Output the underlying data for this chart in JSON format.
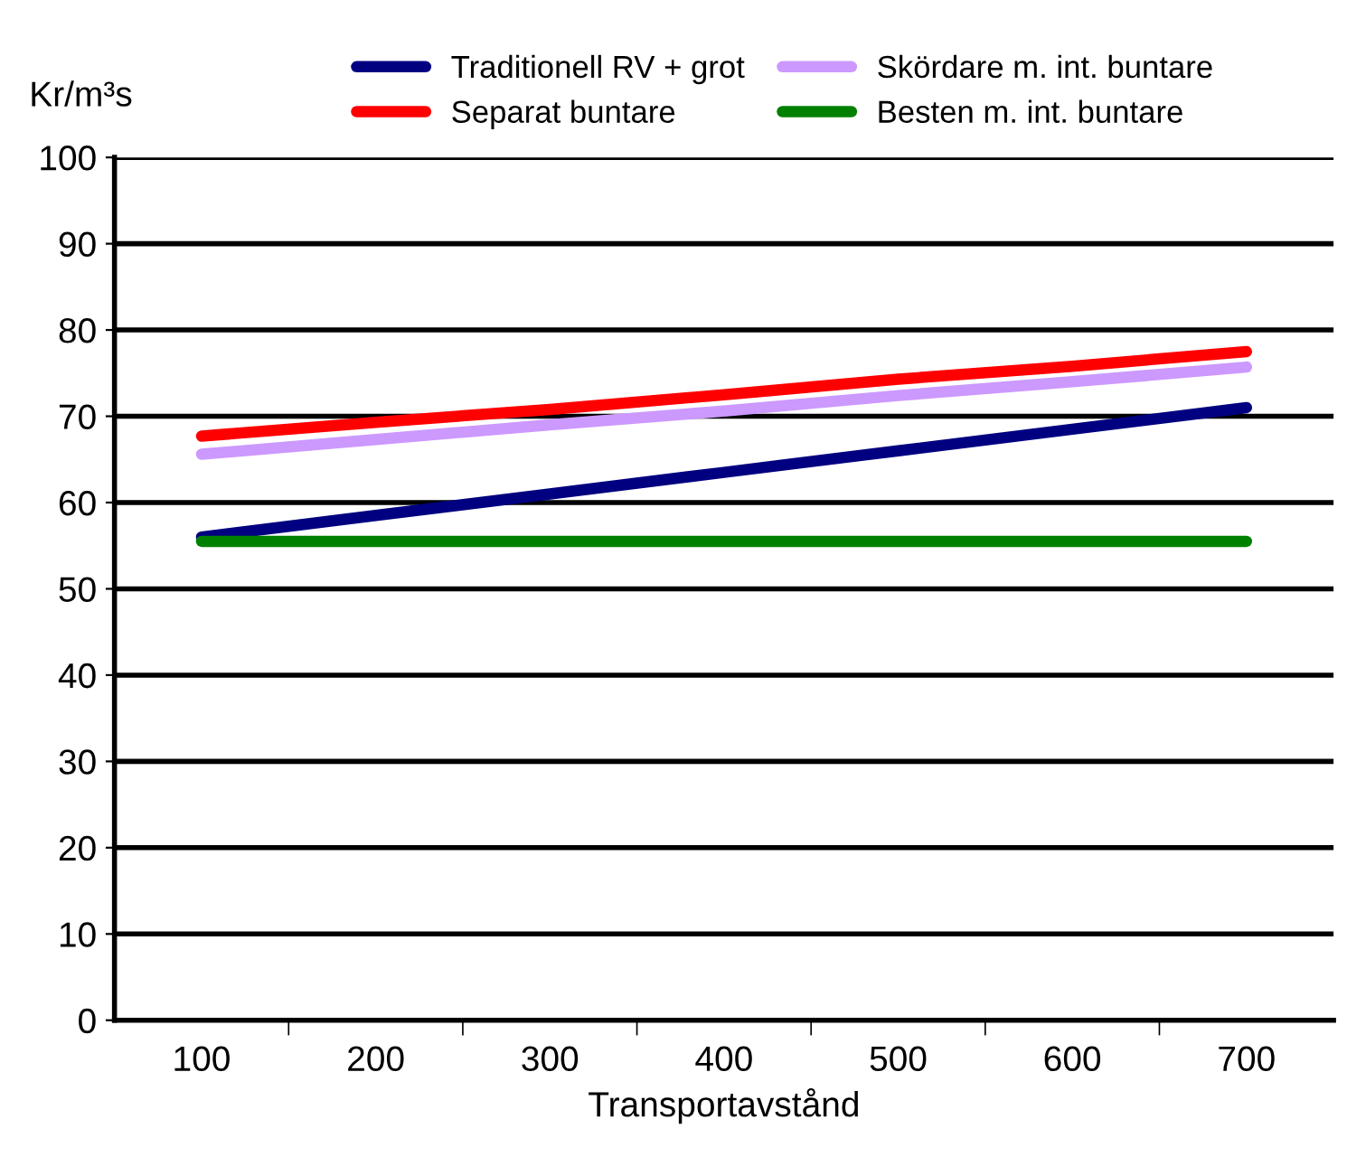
{
  "chart_data": {
    "type": "line",
    "ylabel": "Kr/m³s",
    "xlabel": "Transportavstånd",
    "categories": [
      "100",
      "200",
      "300",
      "400",
      "500",
      "600",
      "700"
    ],
    "series": [
      {
        "name": "Traditionell RV + grot",
        "color": "#000080",
        "values": [
          56,
          58.5,
          61,
          63.5,
          66,
          68.5,
          71
        ]
      },
      {
        "name": "Separat buntare",
        "color": "#ff0000",
        "values": [
          67.7,
          69.3,
          70.8,
          72.5,
          74.3,
          75.8,
          77.5
        ]
      },
      {
        "name": "Skördare m. int. buntare",
        "color": "#cc99ff",
        "values": [
          65.6,
          67.3,
          69,
          70.6,
          72.4,
          74,
          75.7
        ]
      },
      {
        "name": "Besten m. int. buntare",
        "color": "#008000",
        "values": [
          55.5,
          55.5,
          55.5,
          55.5,
          55.5,
          55.5,
          55.5
        ]
      }
    ],
    "ylim": [
      0,
      100
    ],
    "yticks": [
      0,
      10,
      20,
      30,
      40,
      50,
      60,
      70,
      80,
      90,
      100
    ],
    "grid": "y",
    "legend": "top",
    "marker": "none",
    "line_style": "solid"
  }
}
